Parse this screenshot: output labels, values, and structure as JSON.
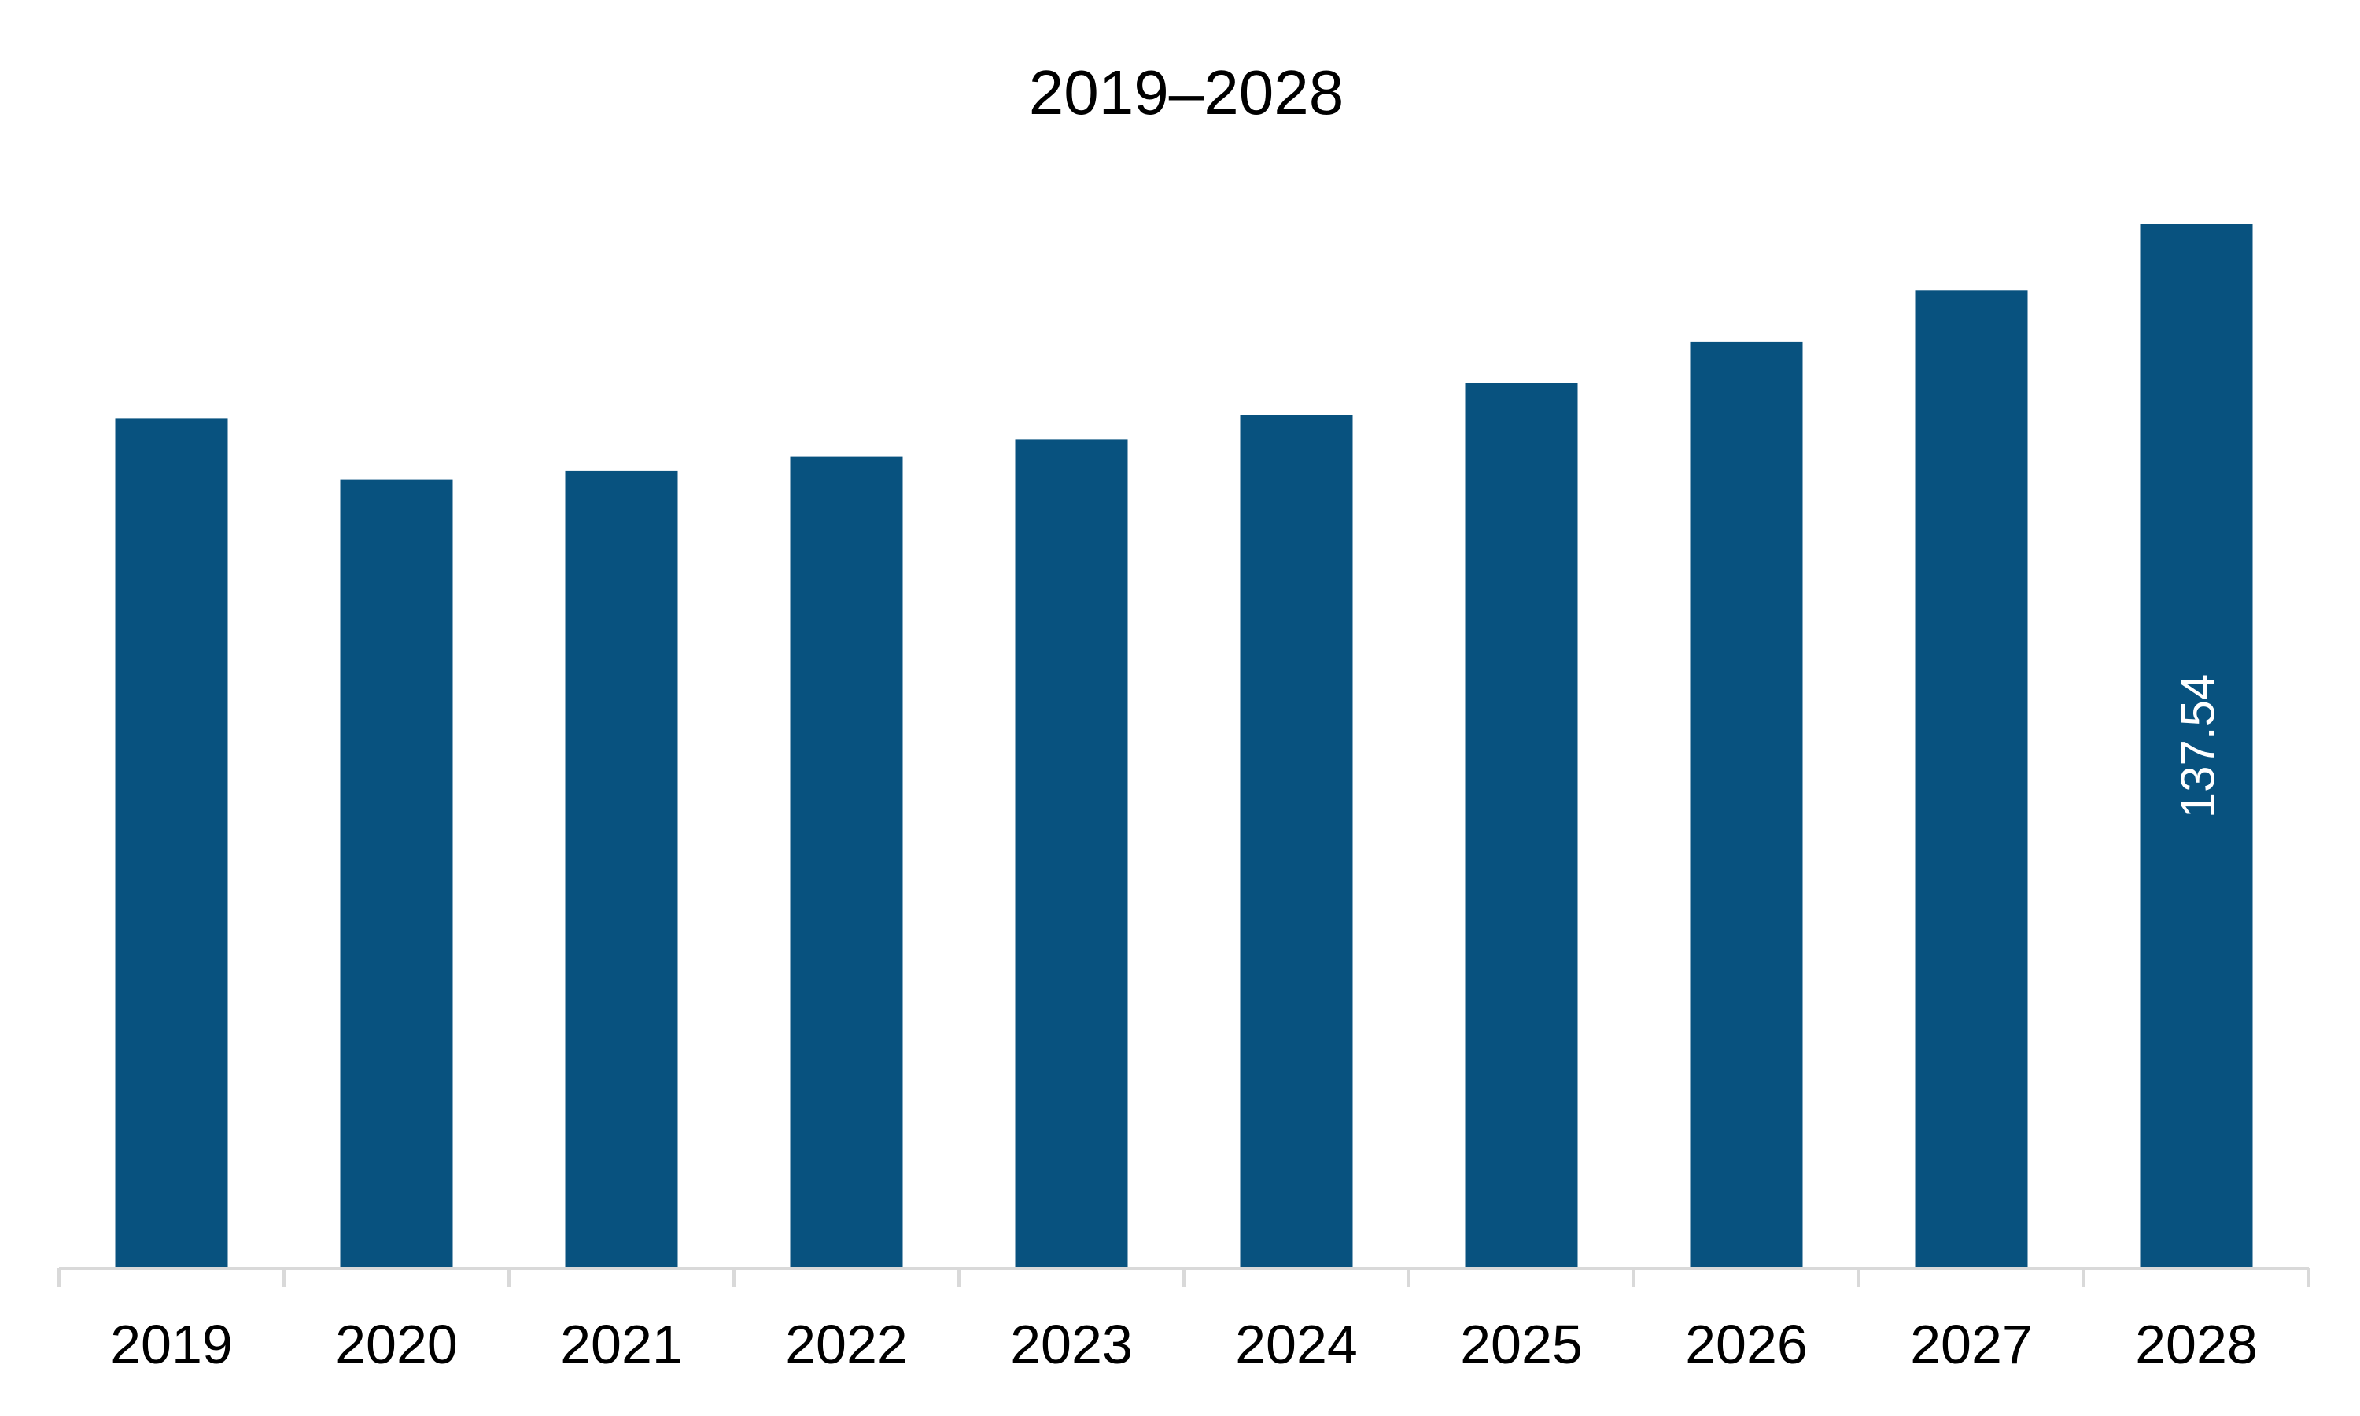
{
  "chart_data": {
    "type": "bar",
    "title": "2019–2028",
    "xlabel": "",
    "ylabel": "",
    "categories": [
      "2019",
      "2020",
      "2021",
      "2022",
      "2023",
      "2024",
      "2025",
      "2026",
      "2027",
      "2028"
    ],
    "series": [
      {
        "values": [
          112.0,
          103.9,
          105.0,
          106.9,
          109.2,
          112.4,
          116.6,
          122.0,
          128.8,
          137.54
        ]
      }
    ],
    "data_labels": [
      {
        "category": "2028",
        "text": "137.54"
      }
    ],
    "ylim": [
      0,
      137.54
    ],
    "grid": false,
    "legend": "none",
    "colors": {
      "bar": "#08527F",
      "axis": "#D9D9D9",
      "data_label": "#FFFFFF",
      "text": "#000000"
    }
  }
}
